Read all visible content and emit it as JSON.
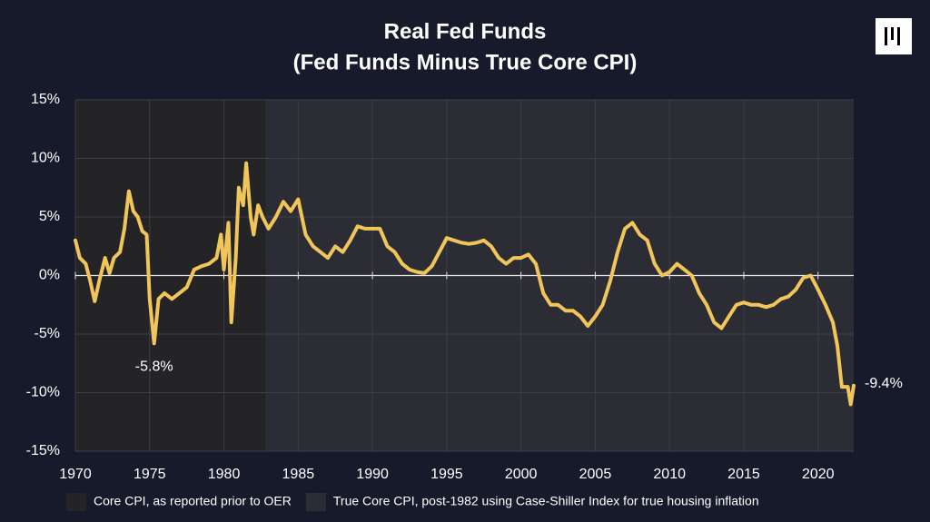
{
  "chart_data": {
    "type": "line",
    "title": "Real Fed Funds",
    "subtitle": "(Fed Funds Minus True Core CPI)",
    "color": "#f0c55a",
    "xlim": [
      1970,
      2022.4
    ],
    "ylim": [
      -15,
      15
    ],
    "xticks": [
      1970,
      1975,
      1980,
      1985,
      1990,
      1995,
      2000,
      2005,
      2010,
      2015,
      2020
    ],
    "yticks": [
      {
        "value": -15,
        "label": "-15%"
      },
      {
        "value": -10,
        "label": "-10%"
      },
      {
        "value": -5,
        "label": "-5%"
      },
      {
        "value": 0,
        "label": "0%"
      },
      {
        "value": 5,
        "label": "5%"
      },
      {
        "value": 10,
        "label": "10%"
      },
      {
        "value": 15,
        "label": "15%"
      }
    ],
    "grid": true,
    "shaded_regions": [
      {
        "name": "Core CPI, as reported prior to OER",
        "start": 1970,
        "end": 1982.8,
        "color": "#242427"
      },
      {
        "name": "True Core CPI, post-1982 using Case-Shiller Index for true housing inflation",
        "start": 1982.8,
        "end": 2022.4,
        "color": "#2c2d34"
      }
    ],
    "annotations": [
      {
        "text": "-5.8%",
        "x": 1975.3,
        "y": -5.8
      },
      {
        "text": "-9.4%",
        "x": 2022.4,
        "y": -9.4
      }
    ],
    "x": [
      1970.0,
      1970.3,
      1970.7,
      1971.0,
      1971.3,
      1971.6,
      1972.0,
      1972.3,
      1972.6,
      1973.0,
      1973.3,
      1973.6,
      1973.9,
      1974.2,
      1974.5,
      1974.8,
      1975.0,
      1975.3,
      1975.6,
      1976.0,
      1976.5,
      1977.0,
      1977.5,
      1978.0,
      1978.5,
      1979.0,
      1979.5,
      1979.8,
      1980.0,
      1980.3,
      1980.5,
      1980.8,
      1981.0,
      1981.3,
      1981.5,
      1981.8,
      1982.0,
      1982.3,
      1982.6,
      1983.0,
      1983.5,
      1984.0,
      1984.5,
      1985.0,
      1985.5,
      1986.0,
      1986.5,
      1987.0,
      1987.5,
      1988.0,
      1988.5,
      1989.0,
      1989.5,
      1990.0,
      1990.5,
      1991.0,
      1991.5,
      1992.0,
      1992.5,
      1993.0,
      1993.5,
      1994.0,
      1994.5,
      1995.0,
      1995.5,
      1996.0,
      1996.5,
      1997.0,
      1997.5,
      1998.0,
      1998.5,
      1999.0,
      1999.5,
      2000.0,
      2000.5,
      2001.0,
      2001.5,
      2002.0,
      2002.5,
      2003.0,
      2003.5,
      2004.0,
      2004.5,
      2005.0,
      2005.5,
      2006.0,
      2006.5,
      2007.0,
      2007.5,
      2008.0,
      2008.5,
      2009.0,
      2009.5,
      2010.0,
      2010.5,
      2011.0,
      2011.5,
      2012.0,
      2012.5,
      2013.0,
      2013.5,
      2014.0,
      2014.5,
      2015.0,
      2015.5,
      2016.0,
      2016.5,
      2017.0,
      2017.5,
      2018.0,
      2018.5,
      2019.0,
      2019.5,
      2020.0,
      2020.5,
      2021.0,
      2021.3,
      2021.6,
      2022.0,
      2022.2,
      2022.4
    ],
    "values": [
      3.0,
      1.5,
      1.0,
      -0.5,
      -2.2,
      -0.5,
      1.5,
      0.2,
      1.5,
      2.0,
      4.0,
      7.2,
      5.5,
      5.0,
      3.8,
      3.5,
      -2.0,
      -5.8,
      -2.0,
      -1.5,
      -2.0,
      -1.5,
      -1.0,
      0.5,
      0.8,
      1.0,
      1.5,
      3.5,
      0.5,
      4.5,
      -4.0,
      1.5,
      7.5,
      6.0,
      9.6,
      5.0,
      3.5,
      6.0,
      5.0,
      4.0,
      5.0,
      6.3,
      5.5,
      6.5,
      3.5,
      2.5,
      2.0,
      1.5,
      2.5,
      2.0,
      3.0,
      4.2,
      4.0,
      4.0,
      4.0,
      2.5,
      2.0,
      1.0,
      0.5,
      0.3,
      0.2,
      0.8,
      2.0,
      3.2,
      3.0,
      2.8,
      2.7,
      2.8,
      3.0,
      2.5,
      1.5,
      1.0,
      1.5,
      1.5,
      1.8,
      1.0,
      -1.5,
      -2.5,
      -2.5,
      -3.0,
      -3.0,
      -3.5,
      -4.3,
      -3.5,
      -2.5,
      -0.5,
      2.0,
      4.0,
      4.5,
      3.5,
      3.0,
      1.0,
      0.0,
      0.3,
      1.0,
      0.5,
      0.0,
      -1.5,
      -2.5,
      -4.0,
      -4.5,
      -3.5,
      -2.5,
      -2.3,
      -2.5,
      -2.5,
      -2.7,
      -2.5,
      -2.0,
      -1.8,
      -1.2,
      -0.2,
      0.0,
      -1.2,
      -2.5,
      -4.0,
      -6.0,
      -9.5,
      -9.5,
      -11.0,
      -9.4
    ]
  }
}
